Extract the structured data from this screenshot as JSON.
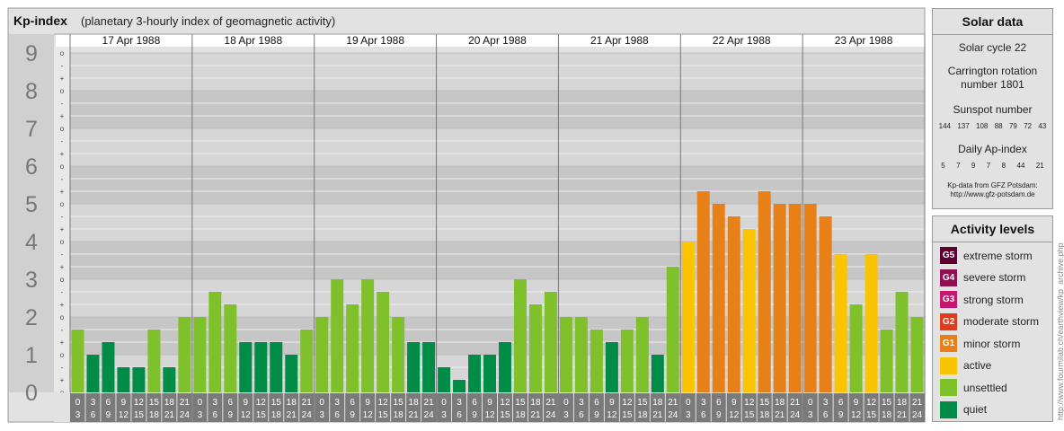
{
  "header": {
    "title": "Kp-index",
    "subtitle": "(planetary 3-hourly index of geomagnetic activity)"
  },
  "chart_data": {
    "type": "bar",
    "title": "Kp-index",
    "subtitle": "(planetary 3-hourly index of geomagnetic activity)",
    "ylim": [
      0,
      9
    ],
    "y_ticks": [
      "0",
      "1",
      "2",
      "3",
      "4",
      "5",
      "6",
      "7",
      "8",
      "9"
    ],
    "minor_tick_marks": [
      "o",
      "+",
      "-"
    ],
    "days": [
      "17 Apr 1988",
      "18 Apr 1988",
      "19 Apr 1988",
      "20 Apr 1988",
      "21 Apr 1988",
      "22 Apr 1988",
      "23 Apr 1988"
    ],
    "hour_labels_top": [
      "0",
      "3",
      "6",
      "9",
      "12",
      "15",
      "18",
      "21"
    ],
    "hour_labels_bottom": [
      "3",
      "6",
      "9",
      "12",
      "15",
      "18",
      "21",
      "24"
    ],
    "values": [
      1.667,
      1.0,
      1.333,
      0.667,
      0.667,
      1.667,
      0.667,
      2.0,
      2.0,
      2.667,
      2.333,
      1.333,
      1.333,
      1.333,
      1.0,
      1.667,
      2.0,
      3.0,
      2.333,
      3.0,
      2.667,
      2.0,
      1.333,
      1.333,
      0.667,
      0.333,
      1.0,
      1.0,
      1.333,
      3.0,
      2.333,
      2.667,
      2.0,
      2.0,
      1.667,
      1.333,
      1.667,
      2.0,
      1.0,
      3.333,
      4.0,
      5.333,
      5.0,
      4.667,
      4.333,
      5.333,
      5.0,
      5.0,
      5.0,
      4.667,
      3.667,
      2.333,
      3.667,
      1.667,
      2.667,
      2.0
    ],
    "levels": [
      {
        "code": "G5",
        "label": "extreme storm",
        "color": "#5e0030"
      },
      {
        "code": "G4",
        "label": "severe storm",
        "color": "#8e1052"
      },
      {
        "code": "G3",
        "label": "strong storm",
        "color": "#c8186e"
      },
      {
        "code": "G2",
        "label": "moderate storm",
        "color": "#e03c1c"
      },
      {
        "code": "G1",
        "label": "minor storm",
        "color": "#e8801a"
      },
      {
        "code": "",
        "label": "active",
        "color": "#fcc400"
      },
      {
        "code": "",
        "label": "unsettled",
        "color": "#7ec12a"
      },
      {
        "code": "",
        "label": "quiet",
        "color": "#008c46"
      }
    ]
  },
  "solar": {
    "title": "Solar data",
    "cycle": "Solar cycle 22",
    "carrington_line1": "Carrington rotation",
    "carrington_line2": "number 1801",
    "sunspot_title": "Sunspot number",
    "sunspots": [
      "144",
      "137",
      "108",
      "88",
      "79",
      "72",
      "43"
    ],
    "ap_title": "Daily Ap-index",
    "ap": [
      "5",
      "7",
      "9",
      "7",
      "8",
      "44",
      "21"
    ],
    "source_line1": "Kp-data from GFZ Potsdam:",
    "source_line2": "http://www.gfz-potsdam.de"
  },
  "activity": {
    "title": "Activity levels"
  },
  "credit": "http://www.fourmilab.ch/earthview/kp_archive.php"
}
